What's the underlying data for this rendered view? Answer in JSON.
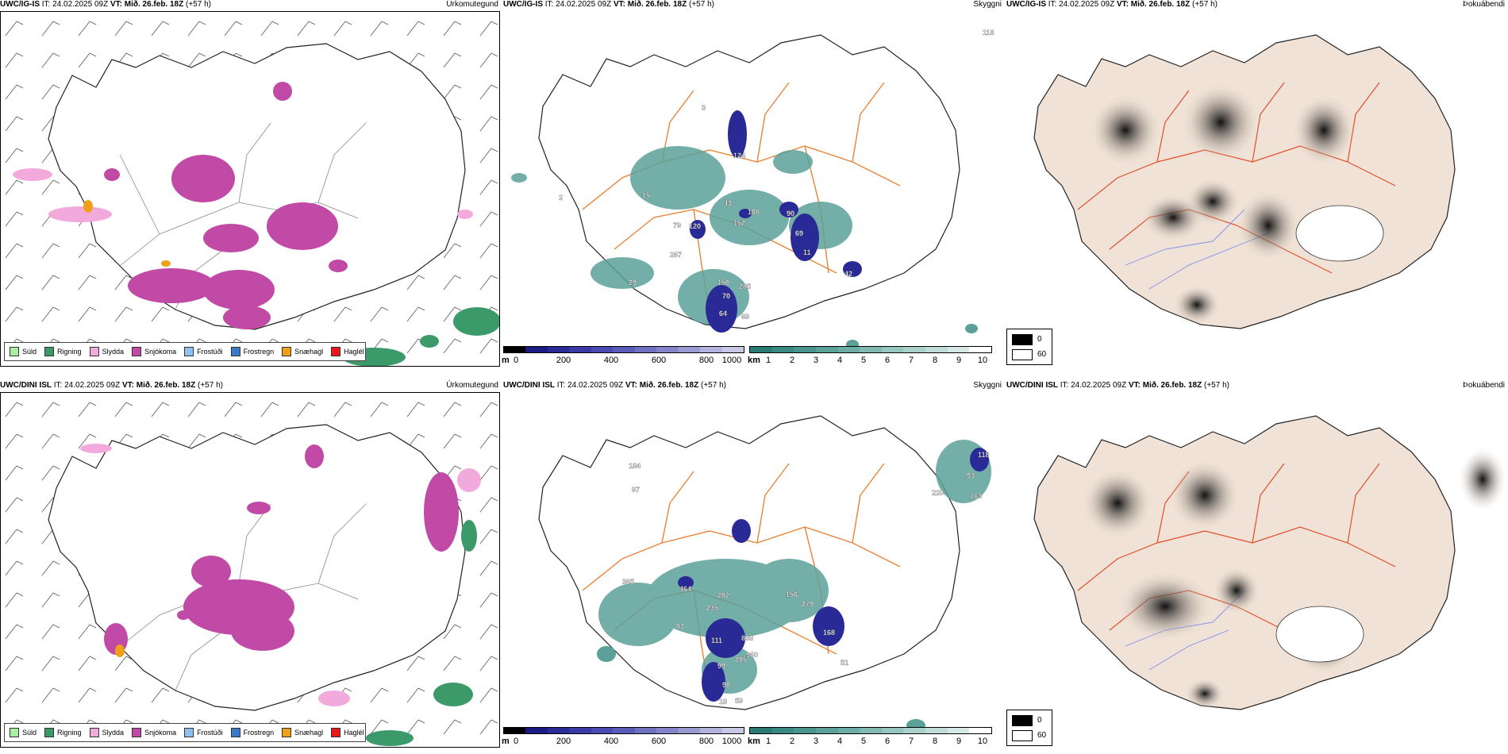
{
  "rows": [
    {
      "precip": {
        "model": "UWC/IG-IS",
        "it": "IT: 24.02.2025 09Z",
        "vt": "VT: Mið. 26.feb. 18Z",
        "lead": "(+57 h)",
        "title": "Úrkomutegund"
      },
      "vis": {
        "model": "UWC/IG-IS",
        "it": "IT: 24.02.2025 09Z",
        "vt": "VT: Mið. 26.feb. 18Z",
        "lead": "(+57 h)",
        "title": "Skyggni"
      },
      "fog": {
        "model": "UWC/IG-IS",
        "it": "IT: 24.02.2025 09Z",
        "vt": "VT: Mið. 26.feb. 18Z",
        "lead": "(+57 h)",
        "title": "Þokuábendi"
      },
      "cloud_labels": [
        "118",
        "3",
        "124",
        "43",
        "108",
        "90",
        "152",
        "69",
        "11",
        "42",
        "79",
        "120",
        "267",
        "150",
        "285",
        "70",
        "64",
        "69",
        "29",
        "2",
        "15"
      ]
    },
    {
      "precip": {
        "model": "UWC/DINI ISL",
        "it": "IT: 24.02.2025 09Z",
        "vt": "VT: Mið. 26.feb. 18Z",
        "lead": "(+57 h)",
        "title": "Úrkomutegund"
      },
      "vis": {
        "model": "UWC/DINI ISL",
        "it": "IT: 24.02.2025 09Z",
        "vt": "VT: Mið. 26.feb. 18Z",
        "lead": "(+57 h)",
        "title": "Skyggni"
      },
      "fog": {
        "model": "UWC/DINI ISL",
        "it": "IT: 24.02.2025 09Z",
        "vt": "VT: Mið. 26.feb. 18Z",
        "lead": "(+57 h)",
        "title": "Þokuábendi"
      },
      "cloud_labels": [
        "118",
        "93",
        "163",
        "220",
        "184",
        "97",
        "365",
        "464",
        "282",
        "156",
        "235",
        "279",
        "168",
        "83",
        "111",
        "838",
        "960",
        "285",
        "99",
        "90",
        "59",
        "18",
        "51"
      ]
    }
  ],
  "precip_legend": [
    {
      "label": "Súld",
      "color": "#a8f0a0"
    },
    {
      "label": "Rigning",
      "color": "#3c9a6a"
    },
    {
      "label": "Slydda",
      "color": "#f2aadc"
    },
    {
      "label": "Snjókoma",
      "color": "#c04aa6"
    },
    {
      "label": "Frostúði",
      "color": "#8ec0f0"
    },
    {
      "label": "Frostregn",
      "color": "#3a78c8"
    },
    {
      "label": "Snæhagl",
      "color": "#f0a018"
    },
    {
      "label": "Haglél",
      "color": "#e81818"
    }
  ],
  "cloud_base_bar": {
    "unit": "m",
    "ticks": [
      "0",
      "200",
      "400",
      "600",
      "800",
      "1000"
    ],
    "colors": [
      "#000000",
      "#1a1a80",
      "#2a2a96",
      "#3a3aa6",
      "#4a4ab0",
      "#5c5cb8",
      "#7070c0",
      "#8484c8",
      "#9a9ad2",
      "#b2b2dc",
      "#c8c8e6"
    ]
  },
  "visibility_bar": {
    "unit": "km",
    "ticks": [
      "1",
      "2",
      "3",
      "4",
      "5",
      "6",
      "7",
      "8",
      "9",
      "10"
    ],
    "colors": [
      "#2a7a74",
      "#3a8882",
      "#4a948e",
      "#5ca09a",
      "#6eaca6",
      "#82b8b2",
      "#96c4be",
      "#aad0ca",
      "#c0dcd8",
      "#d6e8e6",
      "#ffffff"
    ]
  },
  "fog_legend": {
    "high": "0",
    "low": "60"
  }
}
